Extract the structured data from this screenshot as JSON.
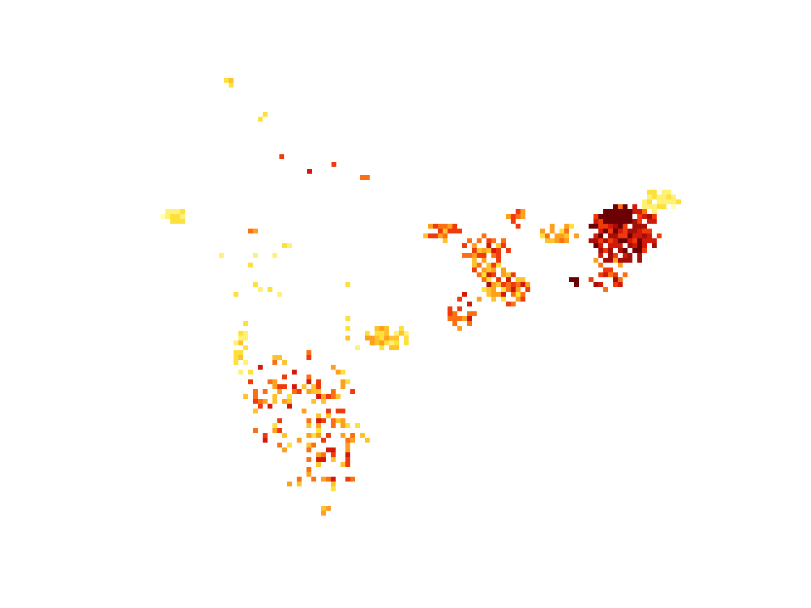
{
  "colors": {
    "background": "#ffffff",
    "palette": [
      "#ffffb2",
      "#fff176",
      "#fee03b",
      "#fec22d",
      "#fd9f1f",
      "#fc6f12",
      "#f03a0c",
      "#d11a0a",
      "#a50f08",
      "#6b0005"
    ]
  },
  "map_data": {
    "type": "raster-heatmap",
    "color_scale": "yellow-orange-red",
    "clusters": [
      {
        "region": "far-north-patch",
        "level": 2
      },
      {
        "region": "north-scatter",
        "level": 1
      },
      {
        "region": "north-red-dots",
        "level": 6
      },
      {
        "region": "north-small-patch",
        "level": 4
      },
      {
        "region": "west-patch",
        "level": 1
      },
      {
        "region": "central-scatter",
        "level": 1
      },
      {
        "region": "eastern-band",
        "level": 5
      },
      {
        "region": "eastern-hotspot",
        "level": 8
      },
      {
        "region": "far-east-fringe",
        "level": 2
      },
      {
        "region": "southern-peninsula",
        "level": 4
      },
      {
        "region": "central-east-patch",
        "level": 3
      }
    ]
  }
}
